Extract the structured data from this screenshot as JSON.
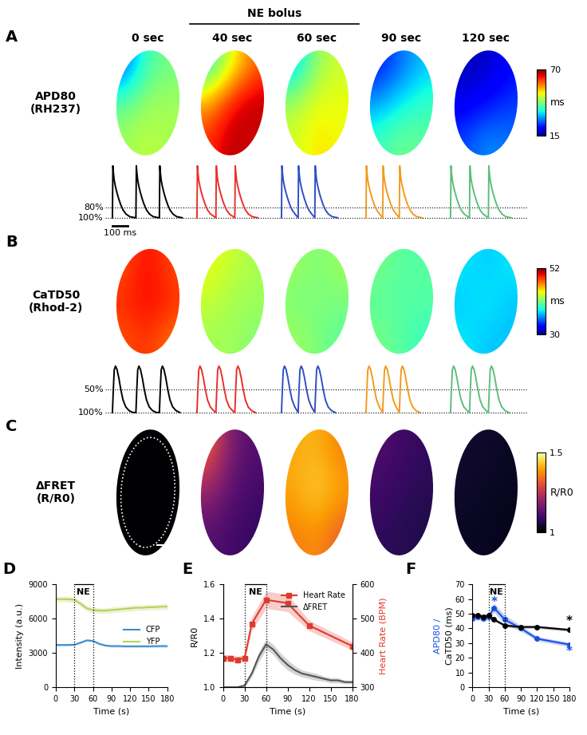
{
  "panel_letters": [
    "A",
    "B",
    "C",
    "D",
    "E",
    "F"
  ],
  "panels": {
    "time_labels": [
      "0 sec",
      "40 sec",
      "60 sec",
      "90 sec",
      "120 sec"
    ],
    "bolus_label": "NE bolus",
    "map_rows": [
      {
        "label": "APD80\n(RH237)",
        "colorbar": {
          "range": [
            15,
            70
          ],
          "ticks": [
            15,
            70
          ],
          "label": "ms"
        },
        "maps": [
          [
            [
              25,
              40,
              42
            ],
            [
              40,
              45,
              45
            ],
            [
              45,
              47,
              45
            ]
          ],
          [
            [
              35,
              50,
              60
            ],
            [
              55,
              65,
              68
            ],
            [
              62,
              68,
              65
            ]
          ],
          [
            [
              30,
              45,
              48
            ],
            [
              45,
              50,
              50
            ],
            [
              48,
              52,
              50
            ]
          ],
          [
            [
              22,
              28,
              33
            ],
            [
              30,
              35,
              38
            ],
            [
              38,
              42,
              40
            ]
          ],
          [
            [
              18,
              18,
              22
            ],
            [
              20,
              22,
              25
            ],
            [
              25,
              30,
              28
            ]
          ]
        ],
        "trace": {
          "waveform_ms": [
            0,
            3,
            6,
            12,
            20,
            30,
            42,
            55,
            70,
            90,
            115,
            150
          ],
          "waveform_level": [
            0,
            1,
            0.88,
            0.72,
            0.6,
            0.48,
            0.36,
            0.25,
            0.15,
            0.07,
            0.02,
            0
          ],
          "cycle_ms": [
            155,
            125,
            110,
            110,
            125
          ],
          "colors": [
            "#000000",
            "#e8302a",
            "#2f4fc4",
            "#f39a1f",
            "#5cbf7a"
          ],
          "levels": [
            {
              "value": 0.2,
              "label": "80%"
            },
            {
              "value": 0,
              "label": "100%"
            }
          ],
          "scale_bar": {
            "value": 100,
            "label": "100 ms"
          }
        }
      },
      {
        "label": "CaTD50\n(Rhod-2)",
        "colorbar": {
          "range": [
            30,
            52
          ],
          "ticks": [
            30,
            52
          ],
          "label": "ms"
        },
        "maps": [
          [
            [
              48,
              50,
              48
            ],
            [
              49,
              50,
              49
            ],
            [
              48,
              49,
              47
            ]
          ],
          [
            [
              44,
              43,
              42
            ],
            [
              43,
              42,
              42
            ],
            [
              42,
              42,
              41
            ]
          ],
          [
            [
              42,
              41,
              42
            ],
            [
              41,
              41,
              41
            ],
            [
              42,
              41,
              40
            ]
          ],
          [
            [
              41,
              40,
              40
            ],
            [
              40,
              40,
              40
            ],
            [
              41,
              40,
              39
            ]
          ],
          [
            [
              38,
              37,
              38
            ],
            [
              37,
              38,
              37
            ],
            [
              38,
              37,
              37
            ]
          ]
        ],
        "trace": {
          "waveform_ms": [
            0,
            6,
            12,
            20,
            30,
            42,
            55,
            70,
            88,
            110,
            135
          ],
          "waveform_level": [
            0,
            0.5,
            0.92,
            1,
            0.93,
            0.75,
            0.5,
            0.27,
            0.12,
            0.04,
            0
          ],
          "cycle_ms": [
            155,
            125,
            110,
            110,
            125
          ],
          "colors": [
            "#000000",
            "#e8302a",
            "#2f4fc4",
            "#f39a1f",
            "#5cbf7a"
          ],
          "levels": [
            {
              "value": 0.5,
              "label": "50%"
            },
            {
              "value": 0,
              "label": "100%"
            }
          ]
        }
      },
      {
        "label": "ΔFRET\n(R/R0)",
        "colorbar": {
          "range": [
            1,
            1.5
          ],
          "ticks": [
            1,
            1.5
          ],
          "label": "R/R0"
        },
        "maps": [
          [
            [
              1.0,
              1.0,
              1.0
            ],
            [
              1.0,
              1.0,
              1.0
            ],
            [
              1.0,
              1.0,
              1.0
            ]
          ],
          [
            [
              1.35,
              1.15,
              1.12
            ],
            [
              1.2,
              1.12,
              1.1
            ],
            [
              1.12,
              1.1,
              1.08
            ]
          ],
          [
            [
              1.4,
              1.42,
              1.35
            ],
            [
              1.4,
              1.45,
              1.4
            ],
            [
              1.35,
              1.38,
              1.3
            ]
          ],
          [
            [
              1.12,
              1.1,
              1.08
            ],
            [
              1.1,
              1.08,
              1.07
            ],
            [
              1.08,
              1.07,
              1.06
            ]
          ],
          [
            [
              1.04,
              1.04,
              1.03
            ],
            [
              1.04,
              1.03,
              1.03
            ],
            [
              1.03,
              1.03,
              1.02
            ]
          ]
        ]
      }
    ]
  },
  "chart_data": [
    {
      "type": "line",
      "xlabel": "Time (s)",
      "ylabel": "Intensity (a.u.)",
      "xlim": [
        0,
        180
      ],
      "xticks": [
        0,
        30,
        60,
        90,
        120,
        150,
        180
      ],
      "ylim": [
        0,
        9000
      ],
      "yticks": [
        0,
        3000,
        6000,
        9000
      ],
      "legend": "center right",
      "stimulus": {
        "start": 30,
        "end": 60,
        "label": "NE"
      },
      "series": [
        {
          "name": "CFP",
          "color": "#3d8fd1",
          "marker": "none",
          "line_style": "solid",
          "x": [
            0,
            10,
            20,
            30,
            40,
            50,
            60,
            70,
            80,
            90,
            100,
            110,
            120,
            130,
            140,
            150,
            160,
            170,
            180
          ],
          "values": [
            3700,
            3700,
            3700,
            3720,
            3900,
            4100,
            4050,
            3800,
            3650,
            3600,
            3600,
            3580,
            3580,
            3580,
            3580,
            3580,
            3590,
            3600,
            3600
          ],
          "error": [
            100,
            100,
            100,
            100,
            100,
            100,
            100,
            100,
            100,
            100,
            100,
            100,
            100,
            100,
            100,
            100,
            100,
            100,
            100
          ]
        },
        {
          "name": "YFP",
          "color": "#b5d25a",
          "marker": "none",
          "line_style": "solid",
          "x": [
            0,
            10,
            20,
            30,
            40,
            50,
            60,
            70,
            80,
            90,
            100,
            110,
            120,
            130,
            140,
            150,
            160,
            170,
            180
          ],
          "values": [
            7700,
            7700,
            7700,
            7650,
            7300,
            6900,
            6750,
            6700,
            6700,
            6750,
            6800,
            6850,
            6900,
            6950,
            6950,
            7000,
            7000,
            7050,
            7050
          ],
          "error": [
            250,
            250,
            250,
            250,
            250,
            250,
            250,
            250,
            250,
            250,
            250,
            250,
            250,
            250,
            250,
            250,
            250,
            250,
            250
          ]
        }
      ]
    },
    {
      "type": "line",
      "xlabel": "Time (s)",
      "ylabel": "R/R0",
      "y2label": "Heart Rate (BPM)",
      "xlim": [
        0,
        180
      ],
      "xticks": [
        0,
        30,
        60,
        90,
        120,
        150,
        180
      ],
      "ylim": [
        1.0,
        1.6
      ],
      "yticks": [
        {
          "value": 1.0,
          "label": "1.0"
        },
        1.2,
        1.4,
        1.6
      ],
      "y2lim": [
        300,
        600
      ],
      "y2ticks": [
        300,
        400,
        500,
        600
      ],
      "legend": "upper right",
      "stimulus": {
        "start": 30,
        "end": 60,
        "label": "NE"
      },
      "series": [
        {
          "name": "Heart Rate",
          "color": "#e03a2f",
          "marker": "square",
          "line_style": "solid",
          "axis": "y2",
          "x": [
            0,
            10,
            20,
            30,
            40,
            60,
            90,
            120,
            180
          ],
          "values": [
            385,
            385,
            380,
            385,
            485,
            555,
            545,
            480,
            420
          ],
          "error": [
            10,
            10,
            10,
            10,
            20,
            25,
            25,
            15,
            12
          ]
        },
        {
          "name": "ΔFRET",
          "color": "#555555",
          "marker": "none",
          "line_style": "solid",
          "x": [
            0,
            10,
            20,
            30,
            40,
            50,
            60,
            70,
            80,
            90,
            100,
            110,
            120,
            130,
            140,
            150,
            160,
            170,
            180
          ],
          "values": [
            1.0,
            1.0,
            1.0,
            1.01,
            1.08,
            1.18,
            1.25,
            1.22,
            1.17,
            1.13,
            1.1,
            1.08,
            1.07,
            1.06,
            1.05,
            1.04,
            1.04,
            1.03,
            1.03
          ],
          "error": [
            0.005,
            0.005,
            0.005,
            0.01,
            0.02,
            0.03,
            0.03,
            0.03,
            0.03,
            0.03,
            0.025,
            0.02,
            0.02,
            0.02,
            0.015,
            0.015,
            0.015,
            0.01,
            0.01
          ]
        }
      ]
    },
    {
      "type": "line",
      "xlabel": "Time (s)",
      "ylabel_parts": [
        {
          "text": "APD80 /",
          "color": "#1a4fe0"
        },
        {
          "text": "CaTD50 (ms)",
          "color": "#000000"
        }
      ],
      "xlim": [
        0,
        180
      ],
      "xticks": [
        0,
        30,
        60,
        90,
        120,
        150,
        180
      ],
      "ylim": [
        0,
        70
      ],
      "yticks": [
        0,
        10,
        20,
        30,
        40,
        50,
        60,
        70
      ],
      "stimulus": {
        "start": 30,
        "end": 60,
        "label": "NE"
      },
      "annotations": [
        {
          "text": "*",
          "x": 40,
          "y": 58,
          "color": "#1a4fe0"
        },
        {
          "text": "*",
          "x": 180,
          "y": 24,
          "color": "#1a4fe0"
        },
        {
          "text": "*",
          "x": 180,
          "y": 45,
          "color": "#000000"
        }
      ],
      "series": [
        {
          "color": "#1a4fe0",
          "marker": "circle",
          "line_style": "solid",
          "x": [
            0,
            10,
            20,
            30,
            40,
            60,
            90,
            120,
            180
          ],
          "values": [
            47,
            48,
            47,
            48,
            54,
            46,
            40,
            33,
            29
          ],
          "error": [
            2,
            2,
            2,
            2,
            3,
            3,
            2,
            1.5,
            1.5
          ]
        },
        {
          "color": "#000000",
          "marker": "circle",
          "line_style": "solid",
          "x": [
            0,
            10,
            20,
            30,
            40,
            60,
            90,
            120,
            180
          ],
          "values": [
            49,
            49,
            48,
            49,
            46,
            42,
            41,
            41,
            39
          ],
          "error": [
            1,
            1,
            1,
            1,
            1,
            1,
            1,
            1,
            1
          ]
        }
      ]
    }
  ]
}
